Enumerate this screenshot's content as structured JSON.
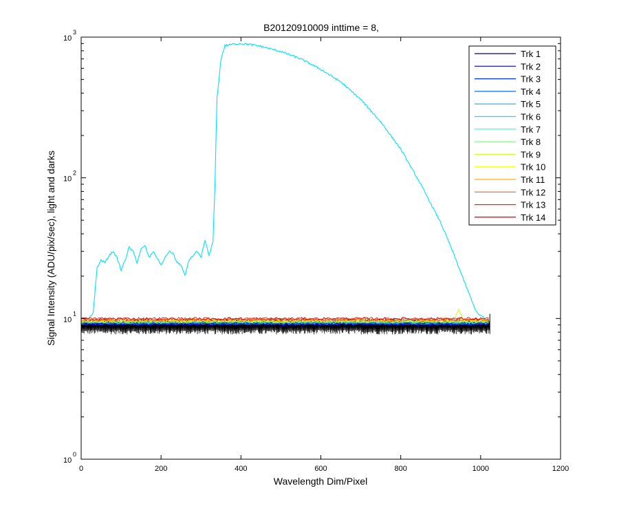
{
  "chart_data": {
    "type": "line",
    "title": "B20120910009 inttime = 8,",
    "xlabel": "Wavelength Dim/Pixel",
    "ylabel": "Signal Intensity (ADU/pix/sec), light and darks",
    "xlim": [
      0,
      1200
    ],
    "ylim": [
      1,
      1000
    ],
    "yscale": "log",
    "grid": false,
    "legend_position": "top-right",
    "x_ticks": [
      "0",
      "200",
      "400",
      "600",
      "800",
      "1000",
      "1200"
    ],
    "x_tick_values": [
      0,
      200,
      400,
      600,
      800,
      1000,
      1200
    ],
    "y_ticks": [
      {
        "base": "10",
        "exp": "0",
        "value": 1
      },
      {
        "base": "10",
        "exp": "1",
        "value": 10
      },
      {
        "base": "10",
        "exp": "2",
        "value": 100
      },
      {
        "base": "10",
        "exp": "3",
        "value": 1000
      }
    ],
    "series": [
      {
        "name": "Trk 1",
        "color": "#00008f",
        "level": 9.0
      },
      {
        "name": "Trk 2",
        "color": "#0000cf",
        "level": 9.1
      },
      {
        "name": "Trk 3",
        "color": "#0030ff",
        "level": 9.2
      },
      {
        "name": "Trk 4",
        "color": "#0070ff",
        "level": 9.2
      },
      {
        "name": "Trk 5",
        "color": "#00afff",
        "level": 9.3
      },
      {
        "name": "Trk 6",
        "color": "#00dfff",
        "x": [
          20,
          30,
          40,
          50,
          60,
          70,
          80,
          90,
          100,
          110,
          120,
          130,
          140,
          150,
          160,
          170,
          180,
          190,
          200,
          210,
          220,
          230,
          240,
          250,
          260,
          270,
          280,
          290,
          300,
          310,
          320,
          330,
          335,
          340,
          345,
          350,
          360,
          370,
          380,
          400,
          420,
          450,
          500,
          550,
          600,
          650,
          700,
          750,
          800,
          850,
          900,
          930,
          960,
          990,
          1000,
          1010
        ],
        "y": [
          10,
          11,
          23,
          26,
          25,
          28,
          30,
          27,
          22,
          26,
          32,
          30,
          25,
          31,
          33,
          27,
          30,
          27,
          24,
          27,
          30,
          29,
          25,
          24,
          20,
          26,
          28,
          30,
          27,
          36,
          28,
          35,
          90,
          370,
          500,
          700,
          870,
          880,
          890,
          900,
          890,
          860,
          790,
          700,
          590,
          480,
          360,
          250,
          160,
          90,
          48,
          30,
          18,
          11,
          10.5,
          10
        ]
      },
      {
        "name": "Trk 7",
        "color": "#10ffef",
        "level": 9.4
      },
      {
        "name": "Trk 8",
        "color": "#80ff80",
        "level": 9.5
      },
      {
        "name": "Trk 9",
        "color": "#cfff30",
        "level": 9.5,
        "x": [
          935,
          940,
          945,
          950,
          955
        ],
        "y": [
          10,
          10.8,
          11.6,
          10.8,
          10
        ]
      },
      {
        "name": "Trk 10",
        "color": "#ffff00",
        "level": 9.6
      },
      {
        "name": "Trk 11",
        "color": "#ffaf00",
        "level": 9.7
      },
      {
        "name": "Trk 12",
        "color": "#ff6000",
        "level": 9.8
      },
      {
        "name": "Trk 13",
        "color": "#ff2000",
        "level": 9.9
      },
      {
        "name": "Trk 14",
        "color": "#cf0000",
        "level": 10.0
      }
    ],
    "darks": {
      "color": "#000000",
      "x_range": [
        0,
        1023
      ],
      "y_min": 7.7,
      "y_max": 10.0
    }
  }
}
